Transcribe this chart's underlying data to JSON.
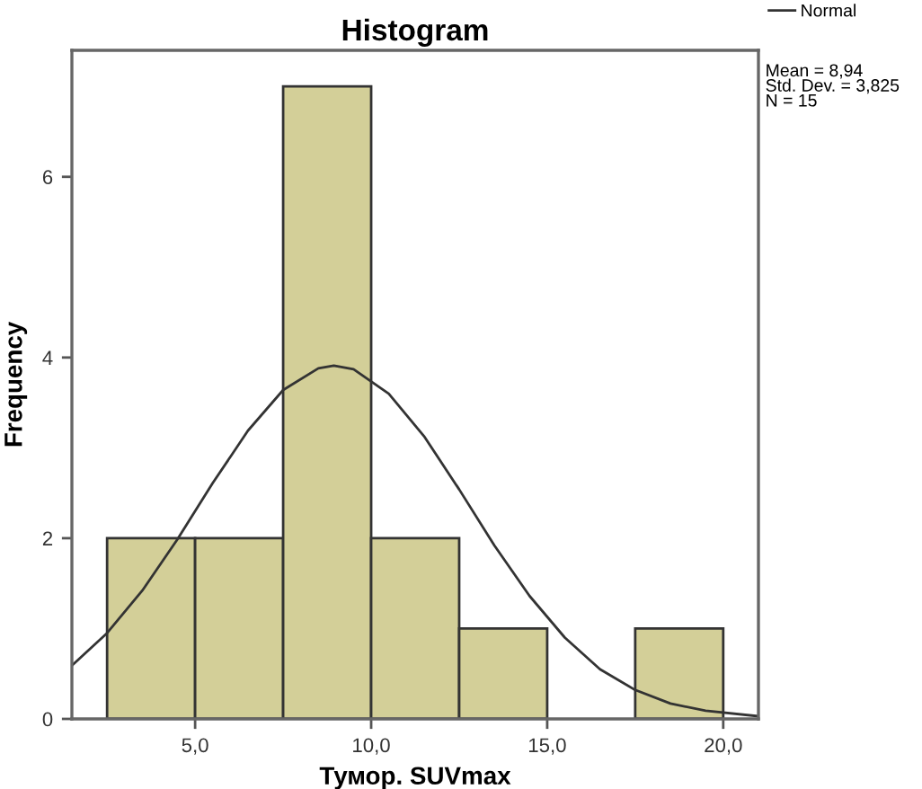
{
  "chart_data": {
    "type": "histogram",
    "title": "Histogram",
    "xlabel": "Тумор. SUVmax",
    "ylabel": "Frequency",
    "bins": [
      2.5,
      5,
      7.5,
      10,
      12.5,
      15,
      17.5,
      20
    ],
    "values": [
      2,
      2,
      7,
      2,
      1,
      0,
      1
    ],
    "color": "#d3cf98",
    "series": [
      {
        "name": "Normal",
        "type": "line",
        "color": "#333333",
        "x": [
          1.5,
          2.5,
          3.5,
          4.5,
          5.5,
          6.5,
          7.5,
          8.5,
          8.94,
          9.5,
          10.5,
          11.5,
          12.5,
          13.5,
          14.5,
          15.5,
          16.5,
          17.5,
          18.5,
          19.5,
          21
        ],
        "values": [
          0.59,
          0.95,
          1.42,
          1.99,
          2.61,
          3.19,
          3.64,
          3.88,
          3.91,
          3.87,
          3.6,
          3.13,
          2.54,
          1.92,
          1.36,
          0.9,
          0.55,
          0.32,
          0.17,
          0.09,
          0.03
        ]
      }
    ],
    "annotations": [
      "Mean = 8,94\nStd. Dev. = 3,825\nN = 15"
    ],
    "xlim": [
      1.5,
      21
    ],
    "ylim": [
      0,
      7.4
    ],
    "xticks": [
      {
        "value": 5,
        "label": "5,0"
      },
      {
        "value": 10,
        "label": "10,0"
      },
      {
        "value": 15,
        "label": "15,0"
      },
      {
        "value": 20,
        "label": "20,0"
      }
    ],
    "yticks": [
      0,
      2,
      4,
      6
    ],
    "grid": false,
    "legend": "top right"
  }
}
